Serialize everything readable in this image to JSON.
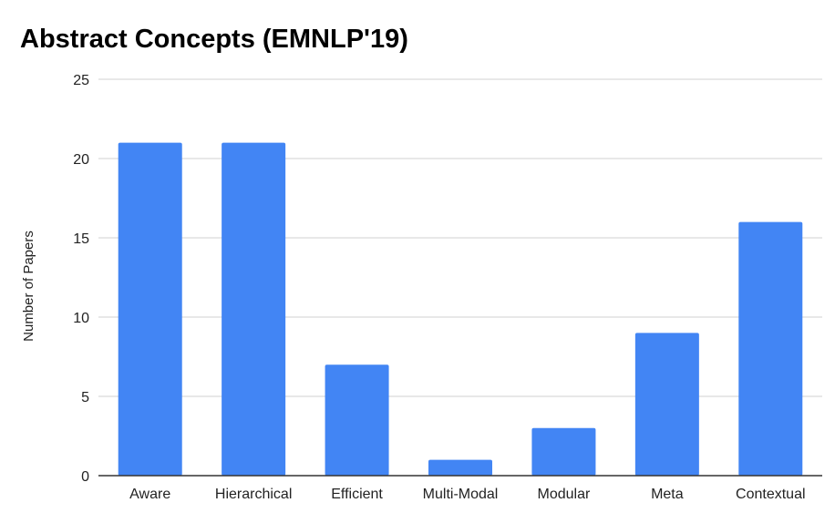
{
  "chart_data": {
    "type": "bar",
    "title": "Abstract Concepts (EMNLP'19)",
    "xlabel": "",
    "ylabel": "Number of Papers",
    "categories": [
      "Aware",
      "Hierarchical",
      "Efficient",
      "Multi-Modal",
      "Modular",
      "Meta",
      "Contextual"
    ],
    "values": [
      21,
      21,
      7,
      1,
      3,
      9,
      16
    ],
    "ylim": [
      0,
      25
    ],
    "yticks": [
      0,
      5,
      10,
      15,
      20,
      25
    ],
    "grid": true,
    "legend": "none",
    "bar_color": "#4285f4"
  }
}
